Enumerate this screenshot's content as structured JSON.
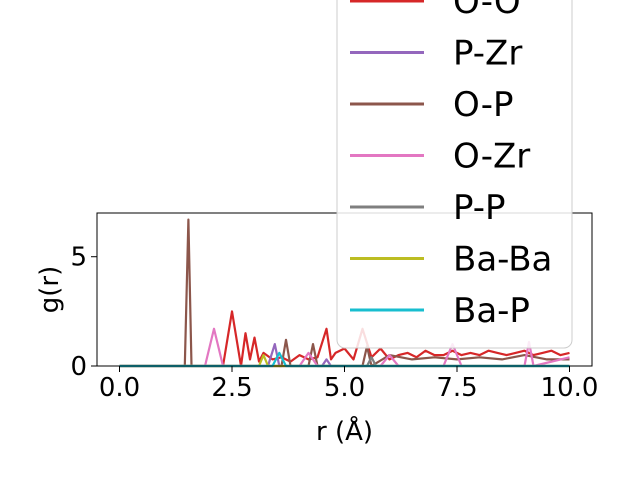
{
  "chart_data": {
    "type": "line",
    "xlabel": "r (Å)",
    "ylabel": "g(r)",
    "xlim": [
      -0.5,
      10.5
    ],
    "ylim": [
      0,
      7.0
    ],
    "xticks": [
      0.0,
      2.5,
      5.0,
      7.5,
      10.0
    ],
    "xtick_labels": [
      "0.0",
      "2.5",
      "5.0",
      "7.5",
      "10.0"
    ],
    "yticks": [
      0,
      5
    ],
    "ytick_labels": [
      "0",
      "5"
    ],
    "legend_position": "upper-right, overflowing above the axes",
    "series": [
      {
        "name": "O-O",
        "color": "#d62728",
        "x": [
          0,
          2.3,
          2.5,
          2.7,
          2.8,
          2.9,
          3.0,
          3.1,
          3.2,
          3.4,
          3.6,
          3.8,
          4.0,
          4.2,
          4.4,
          4.6,
          4.7,
          4.8,
          5.0,
          5.2,
          5.4,
          5.6,
          5.8,
          6.0,
          6.2,
          6.4,
          6.6,
          6.8,
          7.0,
          7.2,
          7.4,
          7.6,
          7.8,
          8.0,
          8.2,
          8.4,
          8.6,
          8.8,
          9.0,
          9.2,
          9.4,
          9.6,
          9.8,
          10.0
        ],
        "y": [
          0,
          0,
          2.5,
          0,
          1.5,
          0.3,
          1.3,
          0.2,
          0.6,
          0.3,
          0.4,
          0.2,
          0.5,
          0.3,
          0.4,
          1.7,
          0.3,
          0.6,
          0.8,
          0.3,
          1.7,
          0.4,
          0.8,
          0.3,
          0.5,
          0.6,
          0.4,
          0.7,
          0.5,
          0.5,
          0.7,
          0.5,
          0.6,
          0.5,
          0.7,
          0.6,
          0.5,
          0.6,
          0.7,
          0.5,
          0.6,
          0.7,
          0.5,
          0.6
        ]
      },
      {
        "name": "P-Zr",
        "color": "#9467bd",
        "x": [
          0,
          3.3,
          3.45,
          3.55,
          4.5,
          4.6,
          4.7,
          10.0
        ],
        "y": [
          0,
          0,
          1.0,
          0,
          0,
          0.3,
          0,
          0
        ]
      },
      {
        "name": "O-P",
        "color": "#8c564b",
        "x": [
          0,
          1.45,
          1.53,
          1.6,
          3.6,
          3.7,
          3.8,
          4.2,
          4.3,
          4.4,
          5.4,
          5.5,
          5.6,
          6.0,
          6.5,
          7.0,
          7.5,
          8.0,
          8.5,
          9.0,
          9.5,
          10.0
        ],
        "y": [
          0,
          0,
          6.7,
          0,
          0,
          1.2,
          0,
          0,
          1.0,
          0,
          0,
          0.9,
          0,
          0.5,
          0.3,
          0.4,
          0.3,
          0.4,
          0.3,
          0.5,
          0.3,
          0.3
        ]
      },
      {
        "name": "O-Zr",
        "color": "#e377c2",
        "x": [
          0,
          1.9,
          2.1,
          2.3,
          4.0,
          4.2,
          4.4,
          5.8,
          6.0,
          6.2,
          7.2,
          7.4,
          7.6,
          9.0,
          9.1,
          9.2,
          10.0
        ],
        "y": [
          0,
          0,
          1.7,
          0,
          0,
          0.6,
          0,
          0,
          0.5,
          0,
          0,
          1.0,
          0,
          0,
          1.1,
          0,
          0.4
        ]
      },
      {
        "name": "P-P",
        "color": "#7f7f7f",
        "x": [
          0,
          5.5,
          5.6,
          5.7,
          10.0
        ],
        "y": [
          0,
          0,
          0.4,
          0,
          0
        ]
      },
      {
        "name": "Ba-Ba",
        "color": "#bcbd22",
        "x": [
          0,
          3.1,
          3.2,
          3.3,
          10.0
        ],
        "y": [
          0,
          0,
          0.5,
          0,
          0
        ]
      },
      {
        "name": "Ba-P",
        "color": "#17becf",
        "x": [
          0,
          3.4,
          3.55,
          3.7,
          10.0
        ],
        "y": [
          0,
          0,
          0.6,
          0,
          0
        ]
      }
    ],
    "legend_partial_first_entry": "O-O"
  }
}
